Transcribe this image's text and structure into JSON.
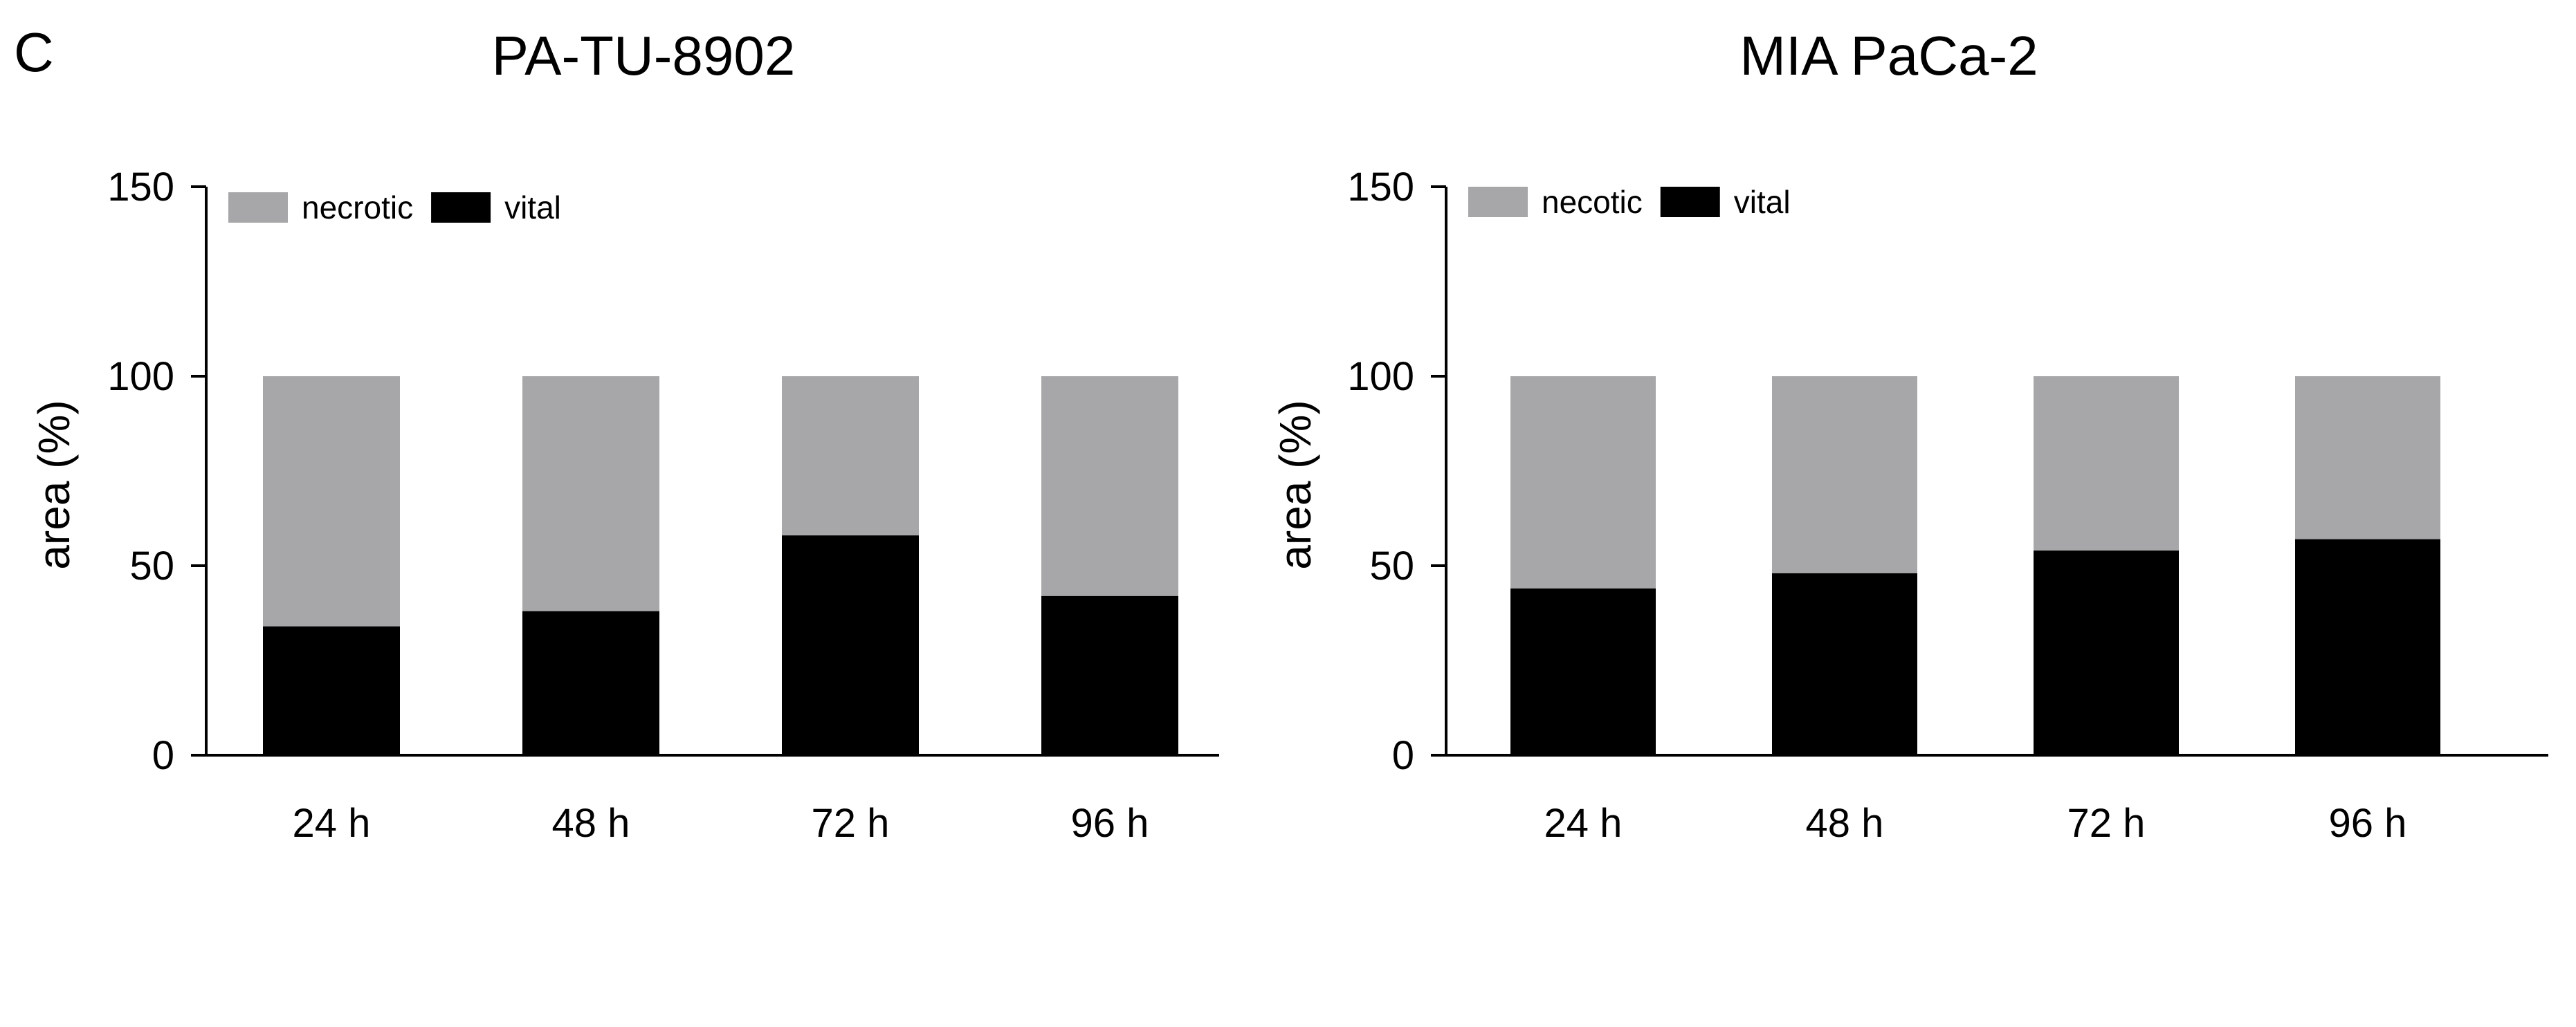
{
  "panel_letter": "C",
  "colors": {
    "necrotic": "#a7a7a9",
    "vital": "#000000"
  },
  "chart_data": [
    {
      "type": "bar",
      "stacked": true,
      "title": "PA-TU-8902",
      "ylabel": "area (%)",
      "ylim": [
        0,
        150
      ],
      "yticks": [
        "0",
        "50",
        "100",
        "150"
      ],
      "categories": [
        "24 h",
        "48 h",
        "72 h",
        "96 h"
      ],
      "legend_position": "top-left",
      "series": [
        {
          "name": "vital",
          "values": [
            34,
            38,
            58,
            42
          ]
        },
        {
          "name": "necrotic",
          "values": [
            66,
            62,
            42,
            58
          ]
        }
      ],
      "legend": [
        "necrotic",
        "vital"
      ]
    },
    {
      "type": "bar",
      "stacked": true,
      "title": "MIA PaCa-2",
      "ylabel": "area (%)",
      "ylim": [
        0,
        150
      ],
      "yticks": [
        "0",
        "50",
        "100",
        "150"
      ],
      "categories": [
        "24 h",
        "48 h",
        "72 h",
        "96 h"
      ],
      "legend_position": "top-left",
      "series": [
        {
          "name": "vital",
          "values": [
            44,
            48,
            54,
            57
          ]
        },
        {
          "name": "necotic",
          "values": [
            56,
            52,
            46,
            43
          ]
        }
      ],
      "legend": [
        "necotic",
        "vital"
      ]
    }
  ]
}
